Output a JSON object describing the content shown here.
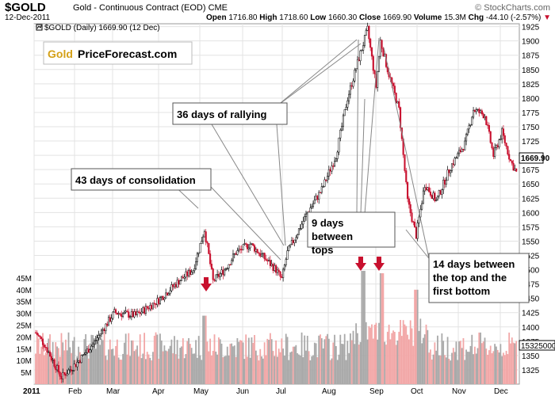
{
  "header": {
    "symbol": "$GOLD",
    "description": "Gold - Continuous Contract (EOD)",
    "exchange": "CME",
    "watermark": "© StockCharts.com",
    "date": "12-Dec-2011",
    "open_label": "Open",
    "open": "1716.80",
    "high_label": "High",
    "high": "1718.60",
    "low_label": "Low",
    "low": "1660.30",
    "close_label": "Close",
    "close": "1669.90",
    "volume_label": "Volume",
    "volume": "15.3M",
    "chg_label": "Chg",
    "chg": "-44.10 (-2.57%)"
  },
  "legend": "$GOLD (Daily) 1669.90 (12 Dec)",
  "logo": {
    "part1": "Gold",
    "part2": "PriceForecast.com"
  },
  "colors": {
    "up": "#000000",
    "down": "#c8102e",
    "vol_up": "#a9a9a9",
    "vol_down": "#f2a7a7",
    "arrow": "#c8102e",
    "last_price_bg": "#ffffff"
  },
  "annotations": [
    {
      "text": "36 days of rallying"
    },
    {
      "text": "43 days of consolidation"
    },
    {
      "text": "9 days between tops"
    },
    {
      "text": "14 days between the top and the first bottom"
    }
  ],
  "chart_data": {
    "type": "candlestick",
    "title": "$GOLD (Daily)",
    "price_axis": {
      "position": "right",
      "ylim": [
        1300,
        1930
      ],
      "ticks": [
        1325,
        1350,
        1375,
        1400,
        1425,
        1450,
        1475,
        1500,
        1525,
        1550,
        1575,
        1600,
        1625,
        1650,
        1675,
        1700,
        1725,
        1750,
        1775,
        1800,
        1825,
        1850,
        1875,
        1900,
        1925
      ],
      "last_price": 1669.9,
      "last_price_label": "1669.90"
    },
    "volume_axis": {
      "position": "left",
      "ylim": [
        0,
        50
      ],
      "ticks": [
        5,
        10,
        15,
        20,
        25,
        30,
        35,
        40,
        45
      ],
      "tick_labels": [
        "5M",
        "10M",
        "15M",
        "20M",
        "25M",
        "30M",
        "35M",
        "40M",
        "45M"
      ],
      "last_volume_label": "15325000"
    },
    "x_axis": {
      "labels": [
        "2011",
        "Feb",
        "Mar",
        "Apr",
        "May",
        "Jun",
        "Jul",
        "Aug",
        "Sep",
        "Oct",
        "Nov",
        "Dec"
      ]
    },
    "key_points": [
      {
        "label": "Jan low",
        "value": 1310
      },
      {
        "label": "early May high",
        "value": 1575
      },
      {
        "label": "early July low",
        "value": 1480
      },
      {
        "label": "Aug top",
        "value": 1920
      },
      {
        "label": "Sep top",
        "value": 1900
      },
      {
        "label": "late Sep bottom",
        "value": 1535
      },
      {
        "label": "Nov high",
        "value": 1800
      },
      {
        "label": "Dec 12 close",
        "value": 1669.9
      }
    ],
    "volume_spikes": [
      {
        "label": "early May",
        "value": 29
      },
      {
        "label": "late Aug",
        "value": 42
      },
      {
        "label": "early Sep",
        "value": 41
      },
      {
        "label": "late Sep",
        "value": 34
      }
    ]
  }
}
